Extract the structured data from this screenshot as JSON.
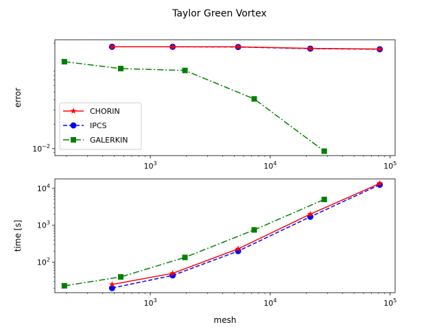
{
  "figure": {
    "suptitle": "Taylor Green Vortex"
  },
  "chart_data": [
    {
      "type": "line",
      "log_x": true,
      "log_y": true,
      "xlim": [
        160,
        110000
      ],
      "ylim": [
        0.0082,
        0.22
      ],
      "xlabel": "",
      "ylabel": "error",
      "x_ticks": [
        {
          "value": 1000,
          "base": "10",
          "exp": "3"
        },
        {
          "value": 10000,
          "base": "10",
          "exp": "4"
        },
        {
          "value": 100000,
          "base": "10",
          "exp": "5"
        }
      ],
      "y_ticks": [
        {
          "value": 0.01,
          "base": "10",
          "exp": "−2"
        }
      ],
      "legend": {
        "placement": "lower-left",
        "entries": [
          "CHORIN",
          "IPCS",
          "GALERKIN"
        ]
      },
      "series": [
        {
          "name": "CHORIN",
          "color": "#ff0000",
          "marker": "star",
          "linestyle": "solid",
          "x": [
            480,
            1536,
            5400,
            21600,
            81920
          ],
          "y": [
            0.18,
            0.18,
            0.18,
            0.172,
            0.169
          ]
        },
        {
          "name": "IPCS",
          "color": "#0000ff",
          "marker": "circle",
          "linestyle": "dashed",
          "x": [
            480,
            1536,
            5400,
            21600,
            81920
          ],
          "y": [
            0.18,
            0.18,
            0.179,
            0.171,
            0.168
          ]
        },
        {
          "name": "GALERKIN",
          "color": "#008000",
          "marker": "square",
          "linestyle": "dashdot",
          "x": [
            192,
            567,
            1944,
            7350,
            28224
          ],
          "y": [
            0.118,
            0.097,
            0.092,
            0.041,
            0.0093
          ]
        }
      ]
    },
    {
      "type": "line",
      "log_x": true,
      "log_y": true,
      "xlim": [
        160,
        110000
      ],
      "ylim": [
        15,
        18000
      ],
      "xlabel": "mesh",
      "ylabel": "time [s]",
      "x_ticks": [
        {
          "value": 1000,
          "base": "10",
          "exp": "3"
        },
        {
          "value": 10000,
          "base": "10",
          "exp": "4"
        },
        {
          "value": 100000,
          "base": "10",
          "exp": "5"
        }
      ],
      "y_ticks": [
        {
          "value": 100,
          "base": "10",
          "exp": "2"
        },
        {
          "value": 1000,
          "base": "10",
          "exp": "3"
        },
        {
          "value": 10000,
          "base": "10",
          "exp": "4"
        }
      ],
      "series": [
        {
          "name": "CHORIN",
          "color": "#ff0000",
          "marker": "star",
          "linestyle": "solid",
          "x": [
            480,
            1536,
            5400,
            21600,
            81920
          ],
          "y": [
            25,
            50,
            230,
            2000,
            13500
          ]
        },
        {
          "name": "IPCS",
          "color": "#0000ff",
          "marker": "circle",
          "linestyle": "dashed",
          "x": [
            480,
            1536,
            5400,
            21600,
            81920
          ],
          "y": [
            20,
            44,
            200,
            1700,
            12500
          ]
        },
        {
          "name": "GALERKIN",
          "color": "#008000",
          "marker": "square",
          "linestyle": "dashdot",
          "x": [
            192,
            567,
            1944,
            7350,
            28224
          ],
          "y": [
            23,
            40,
            135,
            750,
            5000
          ]
        }
      ]
    }
  ]
}
